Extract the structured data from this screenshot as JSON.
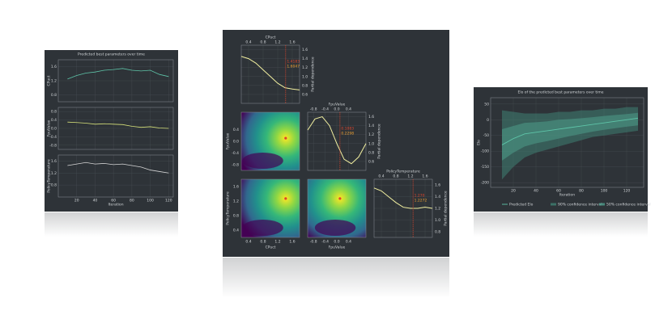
{
  "chart_data": [
    {
      "type": "multi-line",
      "title": "Predicted best parameters over time",
      "xlabel": "Iteration",
      "x": [
        10,
        20,
        30,
        40,
        50,
        60,
        70,
        80,
        90,
        100,
        110,
        120
      ],
      "xlim": [
        0,
        125
      ],
      "xticks": [
        20,
        40,
        60,
        80,
        100,
        120
      ],
      "grid": true,
      "panels": [
        {
          "ylabel": "CPuct",
          "color": "#5ec4a8",
          "ylim": [
            0.6,
            1.8
          ],
          "yticks": [
            0.8,
            1.2,
            1.6
          ],
          "values": [
            1.25,
            1.35,
            1.42,
            1.45,
            1.5,
            1.52,
            1.55,
            1.5,
            1.48,
            1.5,
            1.38,
            1.32
          ]
        },
        {
          "ylabel": "FpuValue",
          "color": "#d7e27a",
          "ylim": [
            -1,
            1
          ],
          "yticks": [
            -0.8,
            -0.4,
            {
              "value": 0,
              "label": "0.0"
            },
            0.4,
            0.8
          ],
          "values": [
            0.3,
            0.28,
            0.25,
            0.2,
            0.22,
            0.2,
            0.18,
            0.1,
            0.05,
            0.08,
            0.02,
            0.0
          ]
        },
        {
          "ylabel": "PolicyTemperature",
          "color": "#d6d6d6",
          "ylim": [
            0.4,
            1.8
          ],
          "yticks": [
            0.8,
            1.2,
            1.6
          ],
          "values": [
            1.45,
            1.5,
            1.55,
            1.5,
            1.52,
            1.48,
            1.5,
            1.45,
            1.4,
            1.3,
            1.25,
            1.2
          ]
        }
      ]
    },
    {
      "type": "partial-dependence",
      "ylabel": "Partial dependence",
      "color": "#f2f0a0",
      "marker_color": "#e0452b",
      "panels": [
        {
          "xlabel": "CPuct",
          "xlim": [
            0.2,
            1.8
          ],
          "xticks": [
            0.4,
            0.8,
            1.2,
            1.6
          ],
          "x": [
            0.2,
            0.4,
            0.6,
            0.8,
            1.0,
            1.2,
            1.4,
            1.6,
            1.8
          ],
          "values": [
            1.45,
            1.4,
            1.3,
            1.15,
            1.0,
            0.85,
            0.75,
            0.72,
            0.7
          ],
          "ylim": [
            0.4,
            1.7
          ],
          "yticks": [
            0.6,
            0.8,
            {
              "value": 1,
              "label": "1.0"
            },
            1.2,
            1.4,
            1.6
          ],
          "marker": 1.4183,
          "annotation": "1.6047"
        },
        {
          "xlabel": "FpuValue",
          "xlim": [
            -1,
            1
          ],
          "xticks": [
            -0.8,
            -0.4,
            {
              "value": 0,
              "label": "0.0"
            },
            0.4
          ],
          "x": [
            -1,
            -0.75,
            -0.5,
            -0.25,
            0,
            0.25,
            0.5,
            0.75,
            1
          ],
          "values": [
            1.3,
            1.55,
            1.6,
            1.4,
            1.0,
            0.65,
            0.55,
            0.7,
            1.0
          ],
          "ylim": [
            0.4,
            1.7
          ],
          "yticks": [
            0.6,
            0.8,
            {
              "value": 1,
              "label": "1.0"
            },
            1.2,
            1.4,
            1.6
          ],
          "marker": 0.1083,
          "annotation": "0.2298"
        },
        {
          "xlabel": "PolicyTemperature",
          "xlim": [
            0.2,
            1.8
          ],
          "xticks": [
            0.4,
            0.8,
            1.2,
            1.6
          ],
          "x": [
            0.2,
            0.4,
            0.6,
            0.8,
            1.0,
            1.2,
            1.4,
            1.6,
            1.8
          ],
          "values": [
            1.55,
            1.5,
            1.4,
            1.3,
            1.22,
            1.2,
            1.2,
            1.22,
            1.2
          ],
          "ylim": [
            0.7,
            1.7
          ],
          "yticks": [
            0.8,
            {
              "value": 1,
              "label": "1.0"
            },
            1.2,
            1.4,
            1.6
          ],
          "marker": 1.27,
          "marker_label": "1.270",
          "annotation": "1.2272"
        }
      ],
      "contours": [
        {
          "best": [
            1.4183,
            0.1083
          ]
        },
        {
          "best": [
            1.4183,
            1.27
          ]
        },
        {
          "best": [
            0.1083,
            1.27
          ]
        }
      ]
    },
    {
      "type": "line",
      "title": "Elo of the predicted best parameters over time",
      "xlabel": "Iteration",
      "ylabel": "Elo",
      "x": [
        10,
        20,
        30,
        40,
        50,
        60,
        70,
        80,
        90,
        100,
        110,
        120,
        130
      ],
      "xlim": [
        0,
        135
      ],
      "xticks": [
        20,
        40,
        60,
        80,
        100,
        120
      ],
      "ylim": [
        -215,
        70
      ],
      "yticks": [
        50,
        0,
        -50,
        -100,
        -150,
        -200
      ],
      "grid": true,
      "series": [
        {
          "name": "Predicted Elo",
          "color": "#5ec4a8",
          "values": [
            -80,
            -60,
            -45,
            -40,
            -35,
            -30,
            -25,
            -20,
            -15,
            -10,
            -5,
            0,
            5
          ]
        },
        {
          "name": "90% confidence interval",
          "color": "#3f7f72",
          "lower": [
            -190,
            -150,
            -120,
            -105,
            -95,
            -85,
            -75,
            -65,
            -55,
            -50,
            -45,
            -40,
            -35
          ],
          "upper": [
            30,
            25,
            20,
            20,
            20,
            25,
            25,
            30,
            30,
            35,
            35,
            40,
            40
          ]
        },
        {
          "name": "50% confidence interval",
          "color": "#4e9c8b",
          "lower": [
            -130,
            -105,
            -85,
            -75,
            -68,
            -60,
            -52,
            -45,
            -38,
            -32,
            -27,
            -22,
            -18
          ],
          "upper": [
            -30,
            -20,
            -10,
            -8,
            -5,
            0,
            2,
            5,
            8,
            12,
            15,
            18,
            22
          ]
        }
      ]
    }
  ]
}
